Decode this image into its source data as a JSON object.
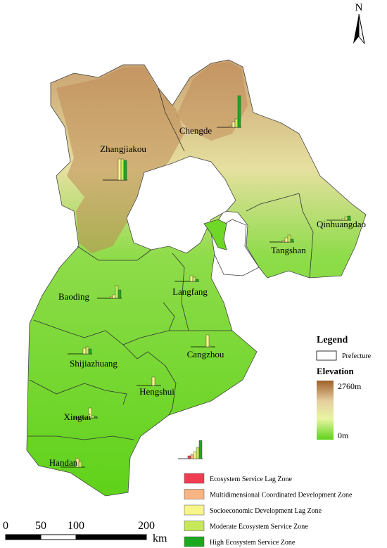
{
  "north": "N",
  "cities": [
    {
      "name": "Zhangjiakou",
      "bars": [
        0,
        0,
        30,
        30,
        28
      ]
    },
    {
      "name": "Chengde",
      "bars": [
        0,
        2,
        8,
        12,
        45
      ]
    },
    {
      "name": "Qinhuangdao",
      "bars": [
        0,
        0,
        2,
        5,
        6
      ]
    },
    {
      "name": "Tangshan",
      "bars": [
        0,
        2,
        6,
        10,
        4
      ]
    },
    {
      "name": "Baoding",
      "bars": [
        0,
        2,
        5,
        18,
        12
      ]
    },
    {
      "name": "Langfang",
      "bars": [
        0,
        0,
        8,
        6,
        3
      ]
    },
    {
      "name": "Shijiazhuang",
      "bars": [
        0,
        0,
        8,
        10,
        7
      ]
    },
    {
      "name": "Cangzhou",
      "bars": [
        0,
        0,
        17,
        1,
        0
      ]
    },
    {
      "name": "Hengshui",
      "bars": [
        0,
        0,
        12,
        0,
        0
      ]
    },
    {
      "name": "Xingtai",
      "bars": [
        0,
        0,
        14,
        3,
        2
      ]
    },
    {
      "name": "Handan",
      "bars": [
        0,
        0,
        12,
        8,
        0
      ]
    }
  ],
  "legend": {
    "title": "Legend",
    "prefecture": "Prefecture",
    "elevation": "Elevation",
    "elevation_max": "2760m",
    "elevation_min": "0m",
    "sample_bars": [
      4,
      6,
      10,
      16,
      26
    ],
    "zones": [
      {
        "label": "Ecosystem Service Lag Zone",
        "color": "#f03c50"
      },
      {
        "label": "Multidimensional Coordinated Development Zone",
        "color": "#f8b482"
      },
      {
        "label": "Socioeconomic Development Lag Zone",
        "color": "#f8f58a"
      },
      {
        "label": "Moderate Ecosystem Service Zone",
        "color": "#c6e85a"
      },
      {
        "label": "High Ecosystem Service Zone",
        "color": "#1ca81e"
      }
    ]
  },
  "scale": {
    "ticks": [
      0,
      50,
      100,
      200
    ],
    "unit": "km"
  }
}
